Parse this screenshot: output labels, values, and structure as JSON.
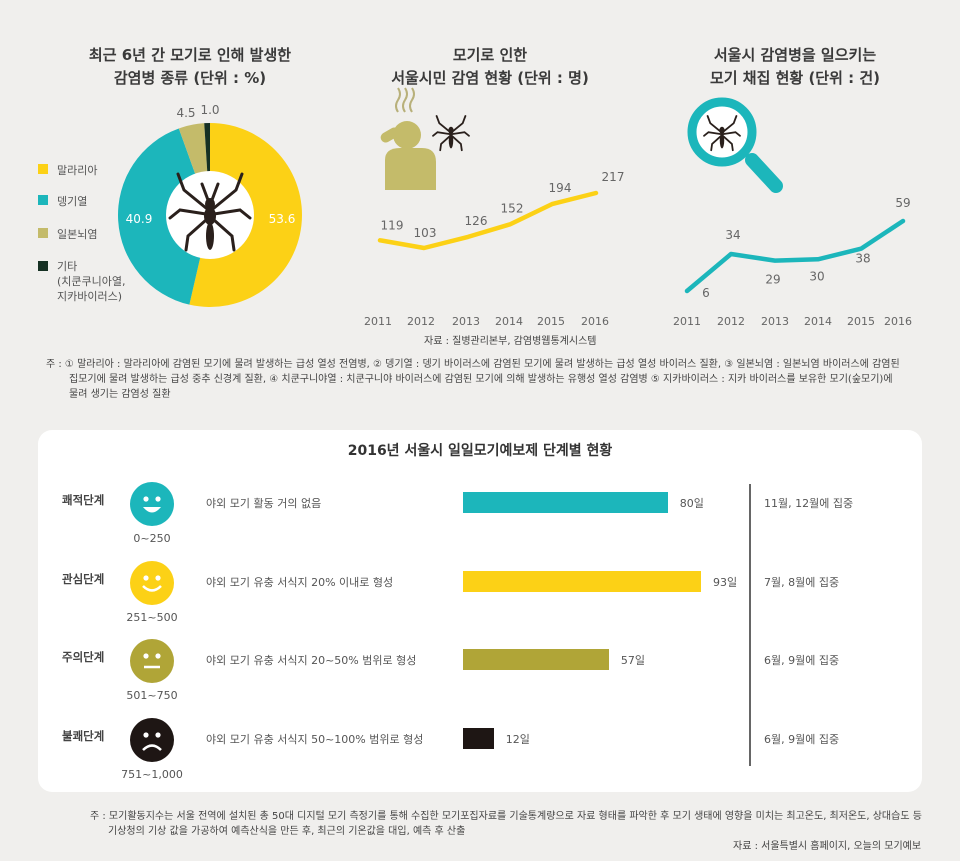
{
  "charts": {
    "pie": {
      "title_line1": "최근 6년 간 모기로 인해 발생한",
      "title_line2": "감염병 종류 (단위 : %)"
    },
    "line1": {
      "title_line1": "모기로 인한",
      "title_line2": "서울시민 감염 현황 (단위 : 명)"
    },
    "line2": {
      "title_line1": "서울시 감염병을 일으키는",
      "title_line2": "모기 채집 현황 (단위 : 건)"
    }
  },
  "chart_data": [
    {
      "type": "pie",
      "title": "최근 6년 간 모기로 인해 발생한 감염병 종류 (단위 : %)",
      "categories": [
        "말라리아",
        "뎅기열",
        "일본뇌염",
        "기타"
      ],
      "values": [
        53.6,
        40.9,
        4.5,
        1.0
      ],
      "value_labels": [
        "53.6",
        "40.9",
        "4.5",
        "1.0"
      ],
      "legend": [
        "말라리아",
        "뎅기열",
        "일본뇌염",
        "기타"
      ],
      "legend_note": [
        "(치쿤쿠니아열,",
        "지카바이러스)"
      ],
      "colors": [
        "#fcd116",
        "#1cb6bb",
        "#c4bb6a",
        "#163123"
      ],
      "legend_position": "left"
    },
    {
      "type": "line",
      "title": "모기로 인한 서울시민 감염 현황 (단위 : 명)",
      "x": [
        "2011",
        "2012",
        "2013",
        "2014",
        "2015",
        "2016"
      ],
      "values": [
        119,
        103,
        126,
        152,
        194,
        217
      ],
      "value_labels": [
        "119",
        "103",
        "126",
        "152",
        "194",
        "217"
      ],
      "color": "#fcd116"
    },
    {
      "type": "line",
      "title": "서울시 감염병을 일으키는 모기 채집 현황 (단위 : 건)",
      "x": [
        "2011",
        "2012",
        "2013",
        "2014",
        "2015",
        "2016"
      ],
      "values": [
        6,
        34,
        29,
        30,
        38,
        59
      ],
      "value_labels": [
        "6",
        "34",
        "29",
        "30",
        "38",
        "59"
      ],
      "color": "#1cb6bb"
    },
    {
      "type": "bar",
      "title": "2016년 서울시 일일모기예보제 단계별 현황",
      "categories": [
        "쾌적단계",
        "관심단계",
        "주의단계",
        "불쾌단계"
      ],
      "values": [
        80,
        93,
        57,
        12
      ],
      "value_labels": [
        "80일",
        "93일",
        "57일",
        "12일"
      ],
      "colors": [
        "#1cb6bb",
        "#fcd116",
        "#b0a537",
        "#1e1614"
      ]
    }
  ],
  "source1": "자료 : 질병관리본부, 감염병웹통계시스템",
  "note1": [
    "주 : ① 말라리아 : 말라리아에 감염된 모기에 물려 발생하는 급성 열성 전염병, ② 뎅기열 : 뎅기 바이러스에 감염된 모기에 물려 발생하는 급성 열성 바이러스 질환, ③ 일본뇌염 : 일본뇌염 바이러스에 감염된",
    "집모기에 물려 발생하는 급성 중추 신경계 질환, ④ 치쿤구니야열 : 치쿤구니야 바이러스에 감염된 모기에 의해 발생하는 유행성 열성 감염병 ⑤ 지카바이러스 : 지카 바이러스를 보유한 모기(숲모기)에",
    "물려 생기는 감염성 질환"
  ],
  "panel": {
    "title": "2016년 서울시 일일모기예보제 단계별 현황",
    "stages": [
      {
        "name": "쾌적단계",
        "range": "0~250",
        "desc": "야외 모기 활동 거의 없음",
        "days": 80,
        "days_label": "80일",
        "period": "11월, 12월에 집중",
        "color": "#1cb6bb",
        "face": "smile-open"
      },
      {
        "name": "관심단계",
        "range": "251~500",
        "desc": "야외 모기 유충 서식지 20% 이내로 형성",
        "days": 93,
        "days_label": "93일",
        "period": "7월, 8월에 집중",
        "color": "#fcd116",
        "face": "smile"
      },
      {
        "name": "주의단계",
        "range": "501~750",
        "desc": "야외 모기 유충 서식지 20~50% 범위로 형성",
        "days": 57,
        "days_label": "57일",
        "period": "6월, 9월에 집중",
        "color": "#b0a537",
        "face": "neutral"
      },
      {
        "name": "불쾌단계",
        "range": "751~1,000",
        "desc": "야외 모기 유충 서식지 50~100% 범위로 형성",
        "days": 12,
        "days_label": "12일",
        "period": "6월, 9월에 집중",
        "color": "#1e1614",
        "face": "sad"
      }
    ]
  },
  "note2": [
    "주 : 모기활동지수는 서울 전역에 설치된 총 50대 디지털 모기 측정기를 통해 수집한 모기포집자료를 기술통계량으로 자료 형태를 파악한 후 모기 생태에 영향을 미치는 최고온도, 최저온도, 상대습도 등",
    "기상청의 기상 값을 가공하여 예측산식을 만든 후, 최근의 기온값을 대입, 예측 후 산출"
  ],
  "source2": "자료 : 서울특별시 홈페이지, 오늘의 모기예보",
  "icons": [
    "mosquito-icon",
    "person-itching-icon",
    "magnifier-icon"
  ]
}
